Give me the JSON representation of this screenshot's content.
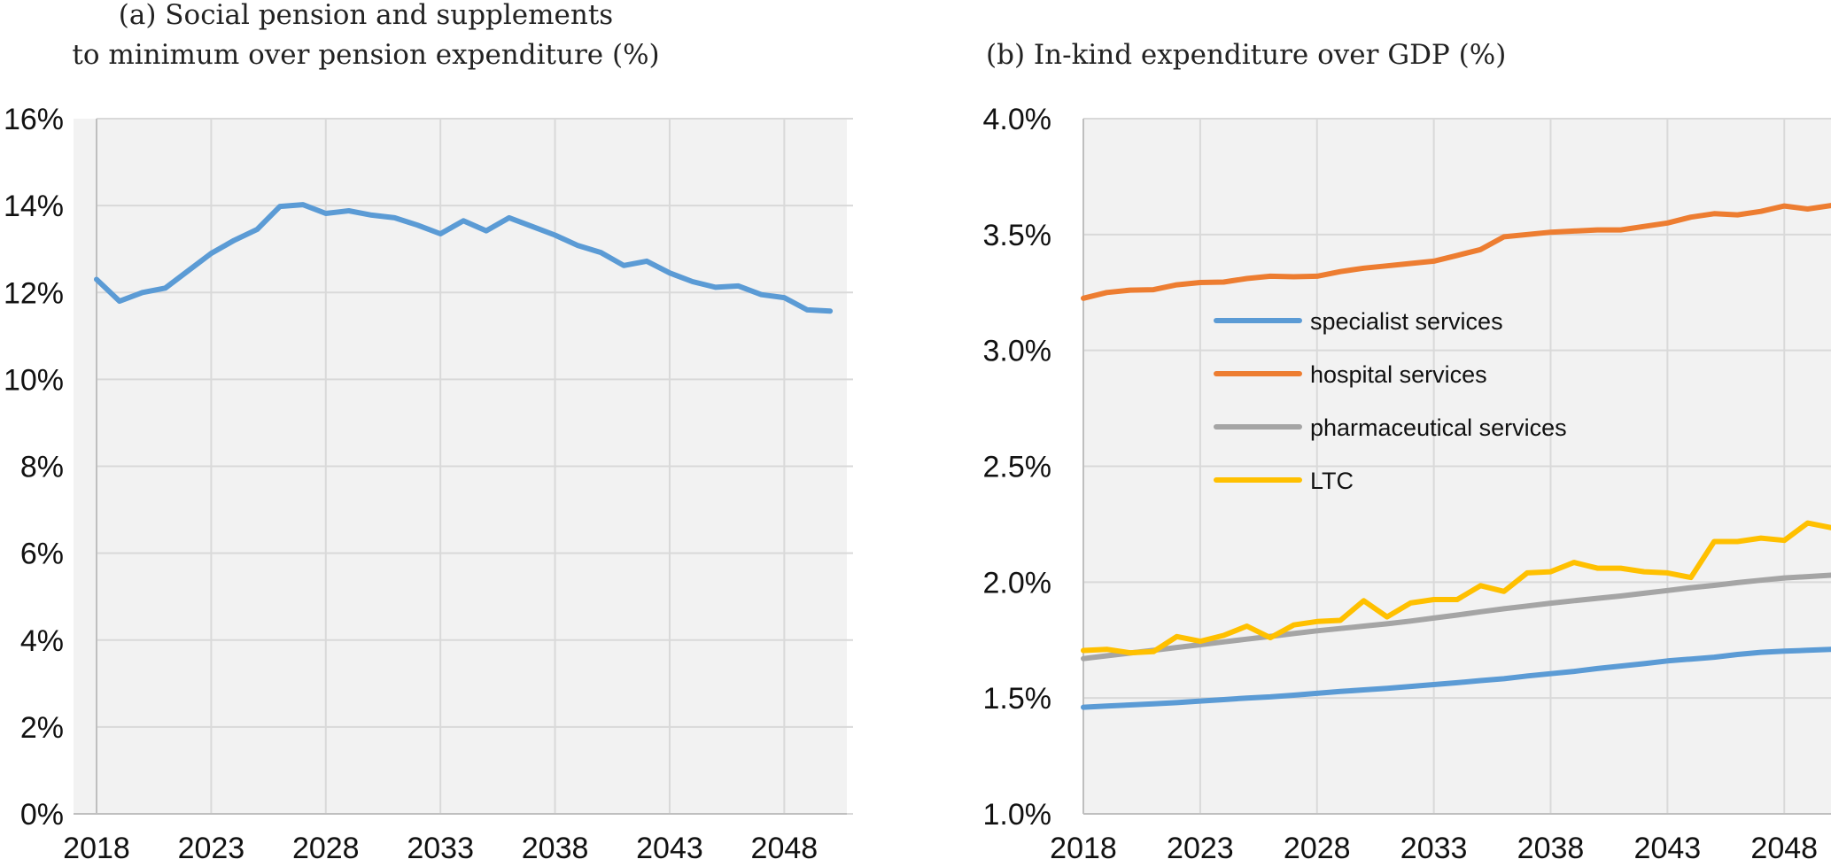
{
  "chart_data": [
    {
      "type": "line",
      "title_lines": [
        "(a) Social pension and supplements",
        "to minimum over pension expenditure (%)"
      ],
      "xlabel": "",
      "ylabel": "",
      "xlim": [
        2018,
        2051
      ],
      "ylim": [
        0,
        16
      ],
      "x_ticks": [
        2018,
        2023,
        2028,
        2033,
        2038,
        2043,
        2048
      ],
      "y_ticks": [
        0,
        2,
        4,
        6,
        8,
        10,
        12,
        14,
        16
      ],
      "y_tick_labels": [
        "0%",
        "2%",
        "4%",
        "6%",
        "8%",
        "10%",
        "12%",
        "14%",
        "16%"
      ],
      "grid": true,
      "series": [
        {
          "color": "#5b9bd5",
          "x": [
            2018,
            2019,
            2020,
            2021,
            2022,
            2023,
            2024,
            2025,
            2026,
            2027,
            2028,
            2029,
            2030,
            2031,
            2032,
            2033,
            2034,
            2035,
            2036,
            2037,
            2038,
            2039,
            2040,
            2041,
            2042,
            2043,
            2044,
            2045,
            2046,
            2047,
            2048,
            2049,
            2050
          ],
          "values": [
            12.3,
            11.8,
            12.0,
            12.1,
            12.5,
            12.9,
            13.2,
            13.45,
            13.98,
            14.02,
            13.82,
            13.88,
            13.78,
            13.72,
            13.55,
            13.35,
            13.65,
            13.42,
            13.72,
            13.52,
            13.32,
            13.08,
            12.92,
            12.62,
            12.72,
            12.45,
            12.25,
            12.12,
            12.15,
            11.95,
            11.88,
            11.6,
            11.57
          ]
        }
      ]
    },
    {
      "type": "line",
      "title_lines": [
        "(b)  In-kind expenditure over GDP (%)"
      ],
      "xlabel": "",
      "ylabel": "",
      "xlim": [
        2018,
        2050
      ],
      "ylim": [
        1.0,
        4.0
      ],
      "x_ticks": [
        2018,
        2023,
        2028,
        2033,
        2038,
        2043,
        2048
      ],
      "y_ticks": [
        1.0,
        1.5,
        2.0,
        2.5,
        3.0,
        3.5,
        4.0
      ],
      "y_tick_labels": [
        "1.0%",
        "1.5%",
        "2.0%",
        "2.5%",
        "3.0%",
        "3.5%",
        "4.0%"
      ],
      "grid": true,
      "legend_position": "center-left",
      "series": [
        {
          "name": "specialist services",
          "color": "#5b9bd5",
          "x": [
            2018,
            2019,
            2020,
            2021,
            2022,
            2023,
            2024,
            2025,
            2026,
            2027,
            2028,
            2029,
            2030,
            2031,
            2032,
            2033,
            2034,
            2035,
            2036,
            2037,
            2038,
            2039,
            2040,
            2041,
            2042,
            2043,
            2044,
            2045,
            2046,
            2047,
            2048,
            2049,
            2050
          ],
          "values": [
            1.46,
            1.465,
            1.47,
            1.475,
            1.48,
            1.487,
            1.493,
            1.5,
            1.505,
            1.512,
            1.52,
            1.528,
            1.535,
            1.542,
            1.55,
            1.558,
            1.566,
            1.575,
            1.583,
            1.595,
            1.605,
            1.615,
            1.627,
            1.638,
            1.648,
            1.66,
            1.668,
            1.676,
            1.688,
            1.697,
            1.702,
            1.706,
            1.71
          ]
        },
        {
          "name": "hospital services",
          "color": "#ed7d31",
          "x": [
            2018,
            2019,
            2020,
            2021,
            2022,
            2023,
            2024,
            2025,
            2026,
            2027,
            2028,
            2029,
            2030,
            2031,
            2032,
            2033,
            2034,
            2035,
            2036,
            2037,
            2038,
            2039,
            2040,
            2041,
            2042,
            2043,
            2044,
            2045,
            2046,
            2047,
            2048,
            2049,
            2050
          ],
          "values": [
            3.225,
            3.25,
            3.26,
            3.262,
            3.283,
            3.293,
            3.295,
            3.31,
            3.32,
            3.318,
            3.32,
            3.34,
            3.355,
            3.365,
            3.375,
            3.385,
            3.41,
            3.435,
            3.49,
            3.5,
            3.51,
            3.515,
            3.52,
            3.52,
            3.535,
            3.55,
            3.575,
            3.59,
            3.585,
            3.6,
            3.623,
            3.61,
            3.625
          ]
        },
        {
          "name": "pharmaceutical services",
          "color": "#a5a5a5",
          "x": [
            2018,
            2019,
            2020,
            2021,
            2022,
            2023,
            2024,
            2025,
            2026,
            2027,
            2028,
            2029,
            2030,
            2031,
            2032,
            2033,
            2034,
            2035,
            2036,
            2037,
            2038,
            2039,
            2040,
            2041,
            2042,
            2043,
            2044,
            2045,
            2046,
            2047,
            2048,
            2049,
            2050
          ],
          "values": [
            1.67,
            1.682,
            1.694,
            1.706,
            1.718,
            1.73,
            1.742,
            1.754,
            1.766,
            1.778,
            1.79,
            1.8,
            1.81,
            1.82,
            1.832,
            1.845,
            1.858,
            1.872,
            1.885,
            1.897,
            1.909,
            1.92,
            1.93,
            1.94,
            1.952,
            1.964,
            1.976,
            1.986,
            1.998,
            2.008,
            2.018,
            2.024,
            2.03
          ]
        },
        {
          "name": "LTC",
          "color": "#ffc000",
          "x": [
            2018,
            2019,
            2020,
            2021,
            2022,
            2023,
            2024,
            2025,
            2026,
            2027,
            2028,
            2029,
            2030,
            2031,
            2032,
            2033,
            2034,
            2035,
            2036,
            2037,
            2038,
            2039,
            2040,
            2041,
            2042,
            2043,
            2044,
            2045,
            2046,
            2047,
            2048,
            2049,
            2050
          ],
          "values": [
            1.705,
            1.71,
            1.695,
            1.7,
            1.765,
            1.745,
            1.77,
            1.81,
            1.76,
            1.815,
            1.83,
            1.835,
            1.92,
            1.85,
            1.91,
            1.925,
            1.925,
            1.985,
            1.96,
            2.04,
            2.045,
            2.085,
            2.06,
            2.06,
            2.045,
            2.04,
            2.02,
            2.175,
            2.175,
            2.19,
            2.18,
            2.255,
            2.235
          ]
        }
      ]
    }
  ]
}
